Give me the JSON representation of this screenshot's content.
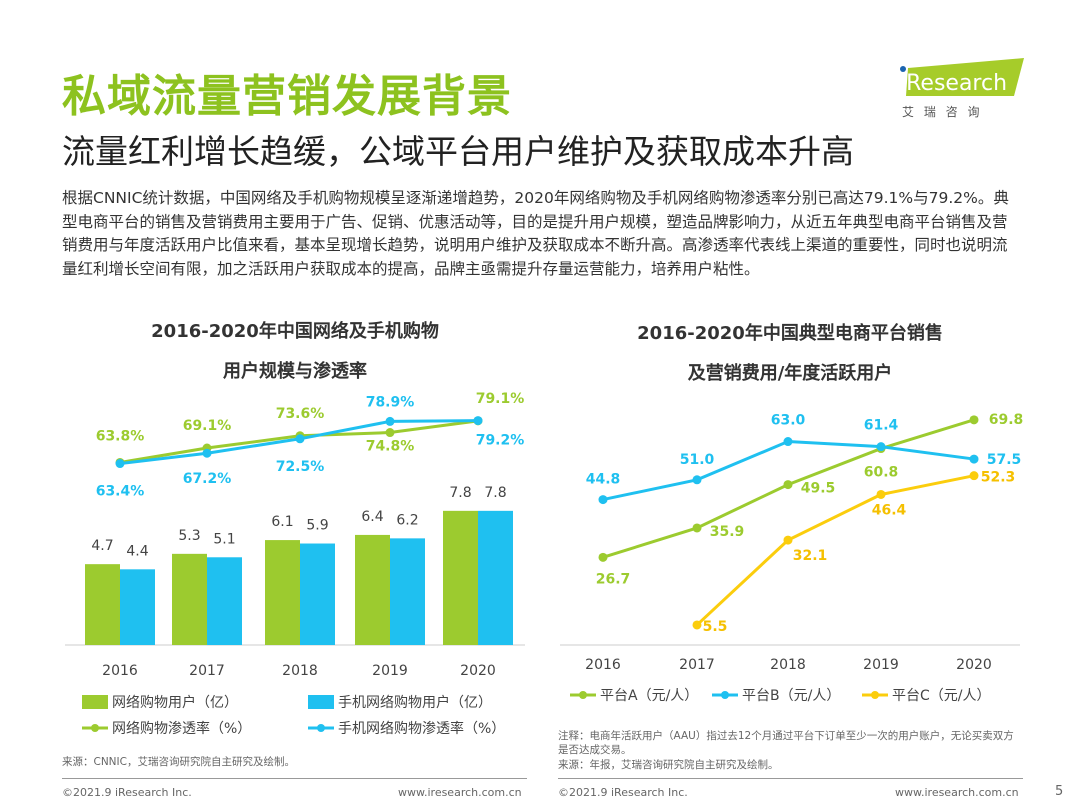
{
  "header": {
    "title": "私域流量营销发展背景",
    "subtitle": "流量红利增长趋缓，公域平台用户维护及获取成本升高",
    "logo_text": "iResearch",
    "logo_cn": "艾 瑞 咨 询"
  },
  "body_text": "根据CNNIC统计数据，中国网络及手机购物规模呈逐渐递增趋势，2020年网络购物及手机网络购物渗透率分别已高达79.1%与79.2%。典型电商平台的销售及营销费用主要用于广告、促销、优惠活动等，目的是提升用户规模，塑造品牌影响力，从近五年典型电商平台销售及营销费用与年度活跃用户比值来看，基本呈现增长趋势，说明用户维护及获取成本不断升高。高渗透率代表线上渠道的重要性，同时也说明流量红利增长空间有限，加之活跃用户获取成本的提高，品牌主亟需提升存量运营能力，培养用户粘性。",
  "colors": {
    "green": "#9ccb2f",
    "blue": "#1fc0f0",
    "yellow": "#fbcd0d",
    "title_green": "#8dc21f"
  },
  "chart_data": [
    {
      "type": "bar+line",
      "title": [
        "2016-2020年中国网络及手机购物",
        "用户规模与渗透率"
      ],
      "categories": [
        "2016",
        "2017",
        "2018",
        "2019",
        "2020"
      ],
      "bar_series": [
        {
          "name": "网络购物用户（亿）",
          "values": [
            4.7,
            5.3,
            6.1,
            6.4,
            7.8
          ]
        },
        {
          "name": "手机网络购物用户（亿）",
          "values": [
            4.4,
            5.1,
            5.9,
            6.2,
            7.8
          ]
        }
      ],
      "line_series": [
        {
          "name": "网络购物渗透率（%）",
          "values": [
            63.8,
            69.1,
            73.6,
            74.8,
            79.1
          ],
          "labels": [
            "63.8%",
            "69.1%",
            "73.6%",
            "74.8%",
            "79.1%"
          ]
        },
        {
          "name": "手机网络购物渗透率（%）",
          "values": [
            63.4,
            67.2,
            72.5,
            78.9,
            79.2
          ],
          "labels": [
            "63.4%",
            "67.2%",
            "72.5%",
            "78.9%",
            "79.2%"
          ]
        }
      ],
      "legend": "bottom",
      "source": "来源：CNNIC，艾瑞咨询研究院自主研究及绘制。"
    },
    {
      "type": "line",
      "title": [
        "2016-2020年中国典型电商平台销售",
        "及营销费用/年度活跃用户"
      ],
      "categories": [
        "2016",
        "2017",
        "2018",
        "2019",
        "2020"
      ],
      "series": [
        {
          "name": "平台A（元/人）",
          "values": [
            26.7,
            35.9,
            49.5,
            60.8,
            69.8
          ]
        },
        {
          "name": "平台B（元/人）",
          "values": [
            44.8,
            51.0,
            63.0,
            61.4,
            57.5
          ]
        },
        {
          "name": "平台C（元/人）",
          "values": [
            null,
            5.5,
            32.1,
            46.4,
            52.3
          ]
        }
      ],
      "legend": "bottom",
      "note": "注释：电商年活跃用户（AAU）指过去12个月通过平台下订单至少一次的用户账户，无论买卖双方是否达成交易。",
      "source": "来源：年报，艾瑞咨询研究院自主研究及绘制。"
    }
  ],
  "footer": {
    "left_copyright": "©2021.9 iResearch Inc.",
    "left_url": "www.iresearch.com.cn",
    "right_copyright": "©2021.9 iResearch Inc.",
    "right_url": "www.iresearch.com.cn",
    "page": "5"
  }
}
